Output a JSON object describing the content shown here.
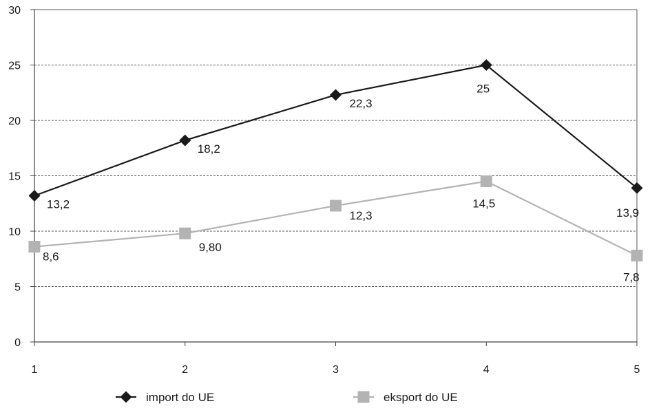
{
  "chart_data": {
    "type": "line",
    "x": [
      1,
      2,
      3,
      4,
      5
    ],
    "x_tick_labels": [
      "1",
      "2",
      "3",
      "4",
      "5"
    ],
    "ylim": [
      0,
      30
    ],
    "y_ticks": [
      0,
      5,
      10,
      15,
      20,
      25,
      30
    ],
    "y_tick_labels": [
      "0",
      "5",
      "10",
      "15",
      "20",
      "25",
      "30"
    ],
    "grid": "horizontal dashed",
    "legend_position": "bottom",
    "series": [
      {
        "name": "import do UE",
        "values": [
          13.2,
          18.2,
          22.3,
          25,
          13.9
        ],
        "labels": [
          "13,2",
          "18,2",
          "22,3",
          "25",
          "13,9"
        ],
        "color": "#1a1a1a",
        "marker": "diamond"
      },
      {
        "name": "eksport do UE",
        "values": [
          8.6,
          9.8,
          12.3,
          14.5,
          7.8
        ],
        "labels": [
          "8,6",
          "9,80",
          "12,3",
          "14,5",
          "7,8"
        ],
        "color": "#b3b3b3",
        "marker": "square"
      }
    ]
  }
}
